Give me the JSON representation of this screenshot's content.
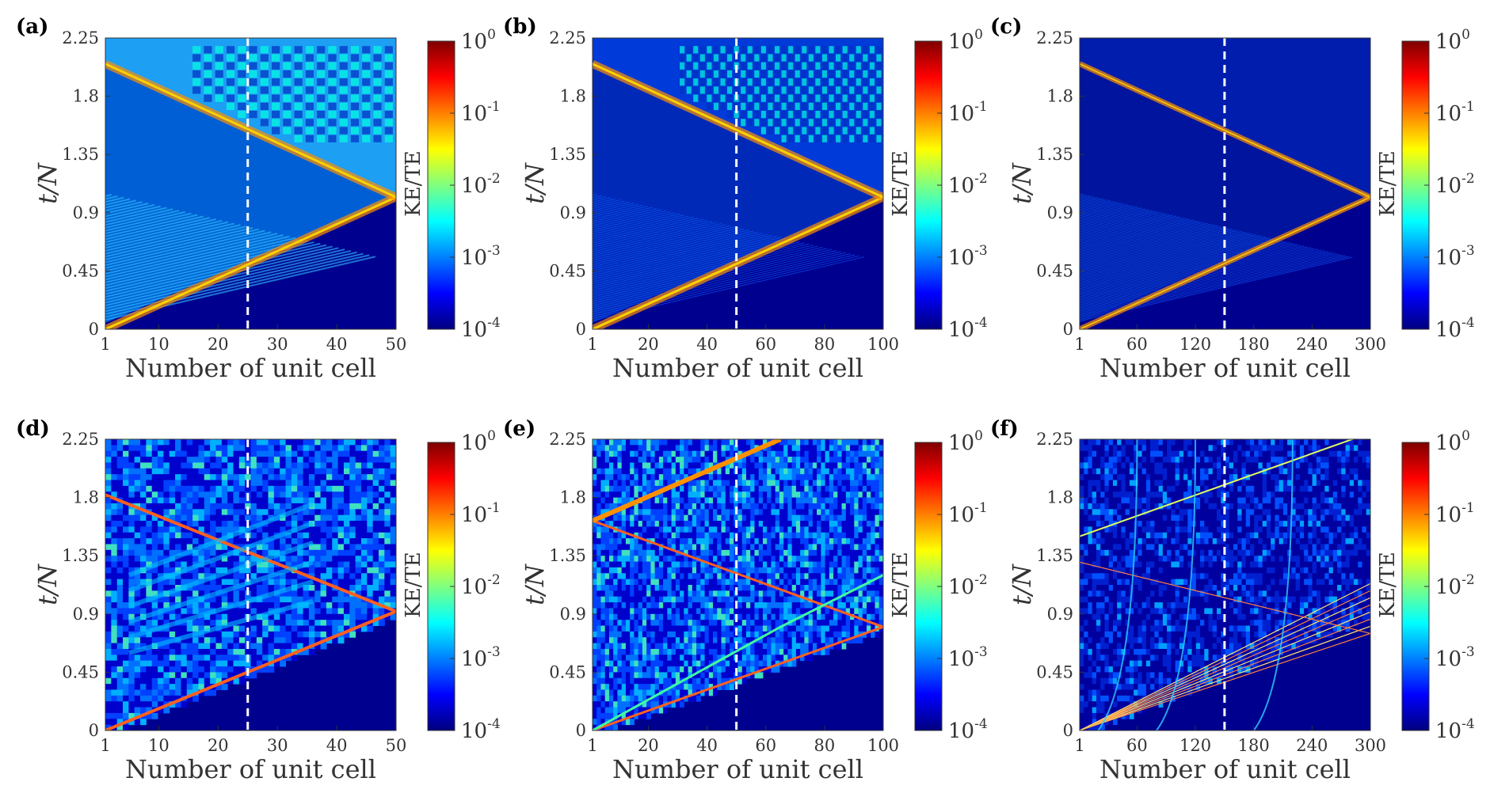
{
  "chart_data": [
    {
      "type": "heatmap",
      "panel": "(a)",
      "xlabel": "Number of unit cell",
      "ylabel": "t/N",
      "xticks": [
        "1",
        "10",
        "20",
        "30",
        "40",
        "50"
      ],
      "yticks": [
        "0",
        "0.45",
        "0.9",
        "1.35",
        "1.8",
        "2.25"
      ],
      "xlim": [
        1,
        50
      ],
      "ylim": [
        0,
        2.25
      ],
      "marker_x": 25,
      "colorbar": {
        "label": "KE/TE",
        "scale": "log",
        "ticks": [
          "10^-4",
          "10^-3",
          "10^-2",
          "10^-1",
          "10^0"
        ],
        "range": [
          0.0001,
          1
        ]
      },
      "features": {
        "wavefront": "line from (1,0) to (50,1.02) reflecting to (1,2.05)",
        "disorder": false
      }
    },
    {
      "type": "heatmap",
      "panel": "(b)",
      "xlabel": "Number of unit cell",
      "ylabel": "t/N",
      "xticks": [
        "1",
        "20",
        "40",
        "60",
        "80",
        "100"
      ],
      "yticks": [
        "0",
        "0.45",
        "0.9",
        "1.35",
        "1.8",
        "2.25"
      ],
      "xlim": [
        1,
        100
      ],
      "ylim": [
        0,
        2.25
      ],
      "marker_x": 50,
      "colorbar": {
        "label": "KE/TE",
        "scale": "log",
        "ticks": [
          "10^-4",
          "10^-3",
          "10^-2",
          "10^-1",
          "10^0"
        ],
        "range": [
          0.0001,
          1
        ]
      },
      "features": {
        "wavefront": "line from (1,0) to (100,1.02) reflecting to (1,2.05)",
        "disorder": false
      }
    },
    {
      "type": "heatmap",
      "panel": "(c)",
      "xlabel": "Number of unit cell",
      "ylabel": "t/N",
      "xticks": [
        "1",
        "60",
        "120",
        "180",
        "240",
        "300"
      ],
      "yticks": [
        "0",
        "0.45",
        "0.9",
        "1.35",
        "1.8",
        "2.25"
      ],
      "xlim": [
        1,
        300
      ],
      "ylim": [
        0,
        2.25
      ],
      "marker_x": 150,
      "colorbar": {
        "label": "KE/TE",
        "scale": "log",
        "ticks": [
          "10^-4",
          "10^-3",
          "10^-2",
          "10^-1",
          "10^0"
        ],
        "range": [
          0.0001,
          1
        ]
      },
      "features": {
        "wavefront": "line from (1,0) to (300,1.02) reflecting to (1,2.05)",
        "disorder": false
      }
    },
    {
      "type": "heatmap",
      "panel": "(d)",
      "xlabel": "Number of unit cell",
      "ylabel": "t/N",
      "xticks": [
        "1",
        "10",
        "20",
        "30",
        "40",
        "50"
      ],
      "yticks": [
        "0",
        "0.45",
        "0.9",
        "1.35",
        "1.8",
        "2.25"
      ],
      "xlim": [
        1,
        50
      ],
      "ylim": [
        0,
        2.25
      ],
      "marker_x": 25,
      "colorbar": {
        "label": "KE/TE",
        "scale": "log",
        "ticks": [
          "10^-4",
          "10^-3",
          "10^-2",
          "10^-1",
          "10^0"
        ],
        "range": [
          0.0001,
          1
        ]
      },
      "features": {
        "wavefront": "line from (1,0) to (50,0.92) and line from (1,1.82) to (50,0.92)",
        "disorder": true
      }
    },
    {
      "type": "heatmap",
      "panel": "(e)",
      "xlabel": "Number of unit cell",
      "ylabel": "t/N",
      "xticks": [
        "1",
        "20",
        "40",
        "60",
        "80",
        "100"
      ],
      "yticks": [
        "0",
        "0.45",
        "0.9",
        "1.35",
        "1.8",
        "2.25"
      ],
      "xlim": [
        1,
        100
      ],
      "ylim": [
        0,
        2.25
      ],
      "marker_x": 50,
      "colorbar": {
        "label": "KE/TE",
        "scale": "log",
        "ticks": [
          "10^-4",
          "10^-3",
          "10^-2",
          "10^-1",
          "10^0"
        ],
        "range": [
          0.0001,
          1
        ]
      },
      "features": {
        "wavefront": "line from (1,0) to (100,0.8) and line from (1,1.62) to (100,0.8)",
        "disorder": true
      }
    },
    {
      "type": "heatmap",
      "panel": "(f)",
      "xlabel": "Number of unit cell",
      "ylabel": "t/N",
      "xticks": [
        "1",
        "60",
        "120",
        "180",
        "240",
        "300"
      ],
      "yticks": [
        "0",
        "0.45",
        "0.9",
        "1.35",
        "1.8",
        "2.25"
      ],
      "xlim": [
        1,
        300
      ],
      "ylim": [
        0,
        2.25
      ],
      "marker_x": 150,
      "colorbar": {
        "label": "KE/TE",
        "scale": "log",
        "ticks": [
          "10^-4",
          "10^-3",
          "10^-2",
          "10^-1",
          "10^0"
        ],
        "range": [
          0.0001,
          1
        ]
      },
      "features": {
        "wavefront": "fan of lines from (1,0) to (300,0.75-1.15)",
        "disorder": true
      }
    }
  ],
  "colors": {
    "background": "#00008f",
    "jet": [
      "#00007f",
      "#0000ff",
      "#007fff",
      "#00ffff",
      "#7fff7f",
      "#ffff00",
      "#ff7f00",
      "#ff0000",
      "#7f0000"
    ],
    "marker": "#ffffff"
  }
}
